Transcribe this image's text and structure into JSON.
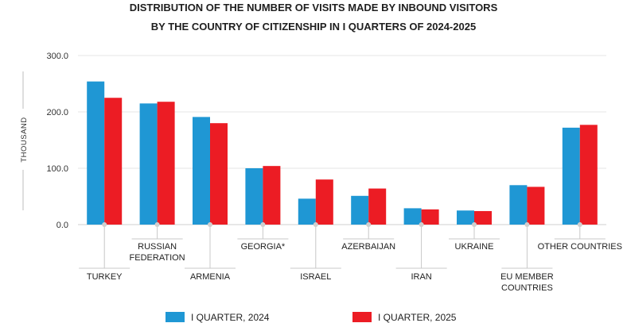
{
  "chart_data": {
    "type": "bar",
    "title_lines": [
      "DISTRIBUTION OF THE NUMBER OF VISITS MADE BY INBOUND VISITORS",
      "BY THE COUNTRY OF CITIZENSHIP IN I QUARTERS OF 2024-2025"
    ],
    "ylabel": "THOUSAND",
    "ylim": [
      0,
      300
    ],
    "yticks": [
      "0.0",
      "100.0",
      "200.0",
      "300.0"
    ],
    "grid": true,
    "legend_position": "bottom",
    "categories": [
      [
        "TURKEY"
      ],
      [
        "RUSSIAN",
        "FEDERATION"
      ],
      [
        "ARMENIA"
      ],
      [
        "GEORGIA*"
      ],
      [
        "ISRAEL"
      ],
      [
        "AZERBAIJAN"
      ],
      [
        "IRAN"
      ],
      [
        "UKRAINE"
      ],
      [
        "EU MEMBER",
        "COUNTRIES"
      ],
      [
        "OTHER COUNTRIES"
      ]
    ],
    "series": [
      {
        "name": "I QUARTER, 2024",
        "color": "#1f97d4",
        "values": [
          254,
          215,
          191,
          100,
          46,
          51,
          29,
          25,
          70,
          172
        ]
      },
      {
        "name": "I QUARTER, 2025",
        "color": "#ec1c24",
        "values": [
          225,
          218,
          180,
          104,
          80,
          64,
          27,
          24,
          67,
          177
        ]
      }
    ]
  }
}
